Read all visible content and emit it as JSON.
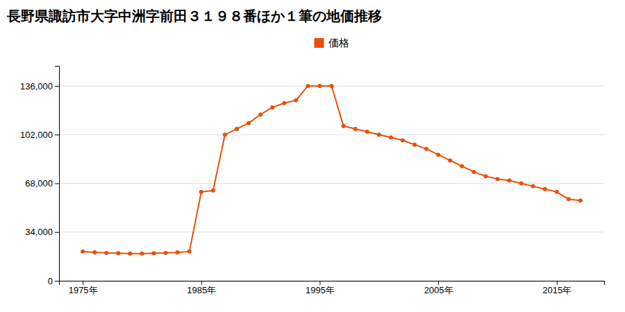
{
  "chart_data": {
    "type": "line",
    "title": "長野県諏訪市大字中洲字前田３１９８番ほか１筆の地価推移",
    "x": [
      1975,
      1976,
      1977,
      1978,
      1979,
      1980,
      1981,
      1982,
      1983,
      1984,
      1985,
      1986,
      1987,
      1988,
      1989,
      1990,
      1991,
      1992,
      1993,
      1994,
      1995,
      1996,
      1997,
      1998,
      1999,
      2000,
      2001,
      2002,
      2003,
      2004,
      2005,
      2006,
      2007,
      2008,
      2009,
      2010,
      2011,
      2012,
      2013,
      2014,
      2015,
      2016,
      2017
    ],
    "series": [
      {
        "name": "価格",
        "color": "#E8500A",
        "marker": "circle",
        "line_style": "solid",
        "values": [
          20500,
          19800,
          19500,
          19200,
          19000,
          19000,
          19200,
          19500,
          19800,
          20500,
          62000,
          63000,
          102000,
          106000,
          110000,
          116000,
          121000,
          124000,
          126000,
          136000,
          136000,
          136000,
          108000,
          106000,
          104000,
          102000,
          100000,
          98000,
          95000,
          92000,
          88000,
          84000,
          80000,
          76000,
          73000,
          71000,
          70000,
          68000,
          66000,
          64000,
          62000,
          57000,
          56000
        ]
      }
    ],
    "xlim": [
      1973,
      2019
    ],
    "xticks": [
      {
        "value": 1975,
        "label": "1975年"
      },
      {
        "value": 1985,
        "label": "1985年"
      },
      {
        "value": 1995,
        "label": "1995年"
      },
      {
        "value": 2005,
        "label": "2005年"
      },
      {
        "value": 2015,
        "label": "2015年"
      }
    ],
    "ylim": [
      0,
      150000
    ],
    "yticks": [
      0,
      {
        "value": 34000,
        "label": "34,000"
      },
      {
        "value": 68000,
        "label": "68,000"
      },
      {
        "value": 102000,
        "label": "102,000"
      },
      {
        "value": 136000,
        "label": "136,000"
      }
    ],
    "grid": true,
    "legend": "top"
  }
}
